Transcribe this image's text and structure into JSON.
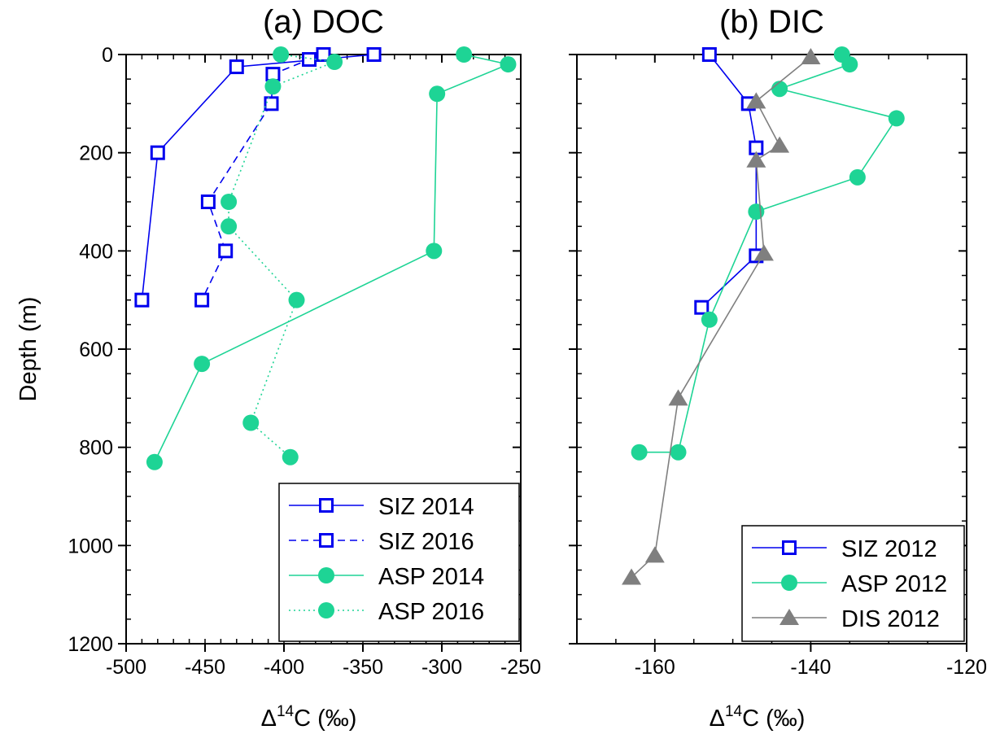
{
  "colors": {
    "siz": "#0000ee",
    "asp": "#1ed495",
    "dis": "#7f7f7f",
    "axis": "#000000"
  },
  "axes": {
    "ylabel": "Depth (m)",
    "xlabel_prefix": "Δ",
    "xlabel_sup": "14",
    "xlabel_suffix": "C (‰)"
  },
  "chart_data": [
    {
      "type": "line",
      "title": "(a) DOC",
      "xlabel": "Δ14C (‰)",
      "ylabel": "Depth (m)",
      "xlim": [
        -500,
        -250
      ],
      "ylim": [
        1200,
        0
      ],
      "x_ticks": [
        -500,
        -450,
        -400,
        -350,
        -300,
        -250
      ],
      "x_tick_labels": [
        "-500",
        "-450",
        "-400",
        "-350",
        "-300",
        "-250"
      ],
      "y_ticks": [
        0,
        200,
        400,
        600,
        800,
        1000,
        1200
      ],
      "y_tick_labels": [
        "0",
        "200",
        "400",
        "600",
        "800",
        "1000",
        "1200"
      ],
      "legend_position": "bottom-right",
      "series": [
        {
          "name": "SIZ 2014",
          "marker": "square",
          "line": "solid",
          "color": "siz",
          "x": [
            -343,
            -430,
            -480,
            -490
          ],
          "y": [
            0,
            25,
            200,
            500
          ]
        },
        {
          "name": "SIZ 2016",
          "marker": "square",
          "line": "dashed",
          "color": "siz",
          "x": [
            -375,
            -384,
            -407,
            -408,
            -448,
            -437,
            -452
          ],
          "y": [
            0,
            10,
            40,
            100,
            300,
            400,
            500
          ]
        },
        {
          "name": "ASP 2014",
          "marker": "circle",
          "line": "solid",
          "color": "asp",
          "x": [
            -286,
            -258,
            -303,
            -305,
            -452,
            -482
          ],
          "y": [
            0,
            20,
            80,
            400,
            630,
            830
          ]
        },
        {
          "name": "ASP 2016",
          "marker": "circle",
          "line": "dotted",
          "color": "asp",
          "x": [
            -402,
            -368,
            -407,
            -435,
            -435,
            -392,
            -421,
            -396
          ],
          "y": [
            0,
            15,
            65,
            300,
            350,
            500,
            750,
            820
          ]
        }
      ]
    },
    {
      "type": "line",
      "title": "(b) DIC",
      "xlabel": "Δ14C (‰)",
      "xlim": [
        -170,
        -120
      ],
      "ylim": [
        1200,
        0
      ],
      "x_ticks": [
        -160,
        -140,
        -120
      ],
      "x_tick_labels": [
        "-160",
        "-140",
        "-120"
      ],
      "y_ticks": [
        0,
        200,
        400,
        600,
        800,
        1000,
        1200
      ],
      "legend_position": "bottom-right",
      "series": [
        {
          "name": "SIZ 2012",
          "marker": "square",
          "line": "solid",
          "color": "siz",
          "x": [
            -153,
            -148,
            -147,
            -147,
            -154
          ],
          "y": [
            0,
            100,
            190,
            410,
            515
          ]
        },
        {
          "name": "ASP 2012",
          "marker": "circle",
          "line": "solid",
          "color": "asp",
          "x": [
            -136,
            -135,
            -144,
            -129,
            -134,
            -147,
            -153,
            -157,
            -162
          ],
          "y": [
            0,
            20,
            70,
            130,
            250,
            320,
            540,
            810,
            810
          ]
        },
        {
          "name": "DIS 2012",
          "marker": "triangle",
          "line": "solid",
          "color": "dis",
          "x": [
            -140,
            -147,
            -144,
            -147,
            -146,
            -157,
            -160,
            -163
          ],
          "y": [
            5,
            95,
            185,
            215,
            405,
            700,
            1020,
            1065
          ]
        }
      ]
    }
  ]
}
